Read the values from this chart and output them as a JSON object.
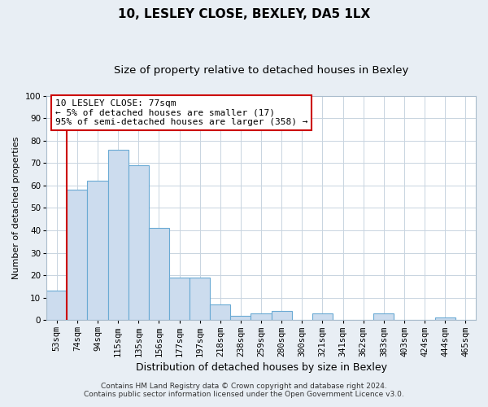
{
  "title": "10, LESLEY CLOSE, BEXLEY, DA5 1LX",
  "subtitle": "Size of property relative to detached houses in Bexley",
  "xlabel": "Distribution of detached houses by size in Bexley",
  "ylabel": "Number of detached properties",
  "categories": [
    "53sqm",
    "74sqm",
    "94sqm",
    "115sqm",
    "135sqm",
    "156sqm",
    "177sqm",
    "197sqm",
    "218sqm",
    "238sqm",
    "259sqm",
    "280sqm",
    "300sqm",
    "321sqm",
    "341sqm",
    "362sqm",
    "383sqm",
    "403sqm",
    "424sqm",
    "444sqm",
    "465sqm"
  ],
  "values": [
    13,
    58,
    62,
    76,
    69,
    41,
    19,
    19,
    7,
    2,
    3,
    4,
    0,
    3,
    0,
    0,
    3,
    0,
    0,
    1,
    0
  ],
  "bar_color": "#ccdcee",
  "bar_edge_color": "#6aaad4",
  "vline_x": 0.5,
  "vline_color": "#cc0000",
  "ylim": [
    0,
    100
  ],
  "annotation_line1": "10 LESLEY CLOSE: 77sqm",
  "annotation_line2": "← 5% of detached houses are smaller (17)",
  "annotation_line3": "95% of semi-detached houses are larger (358) →",
  "annotation_box_color": "#ffffff",
  "annotation_box_edge": "#cc0000",
  "footer_line1": "Contains HM Land Registry data © Crown copyright and database right 2024.",
  "footer_line2": "Contains public sector information licensed under the Open Government Licence v3.0.",
  "background_color": "#e8eef4",
  "plot_background": "#ffffff",
  "grid_color": "#c8d4e0",
  "title_fontsize": 11,
  "subtitle_fontsize": 9.5,
  "xlabel_fontsize": 9,
  "ylabel_fontsize": 8,
  "tick_fontsize": 7.5,
  "annot_fontsize": 8,
  "footer_fontsize": 6.5
}
